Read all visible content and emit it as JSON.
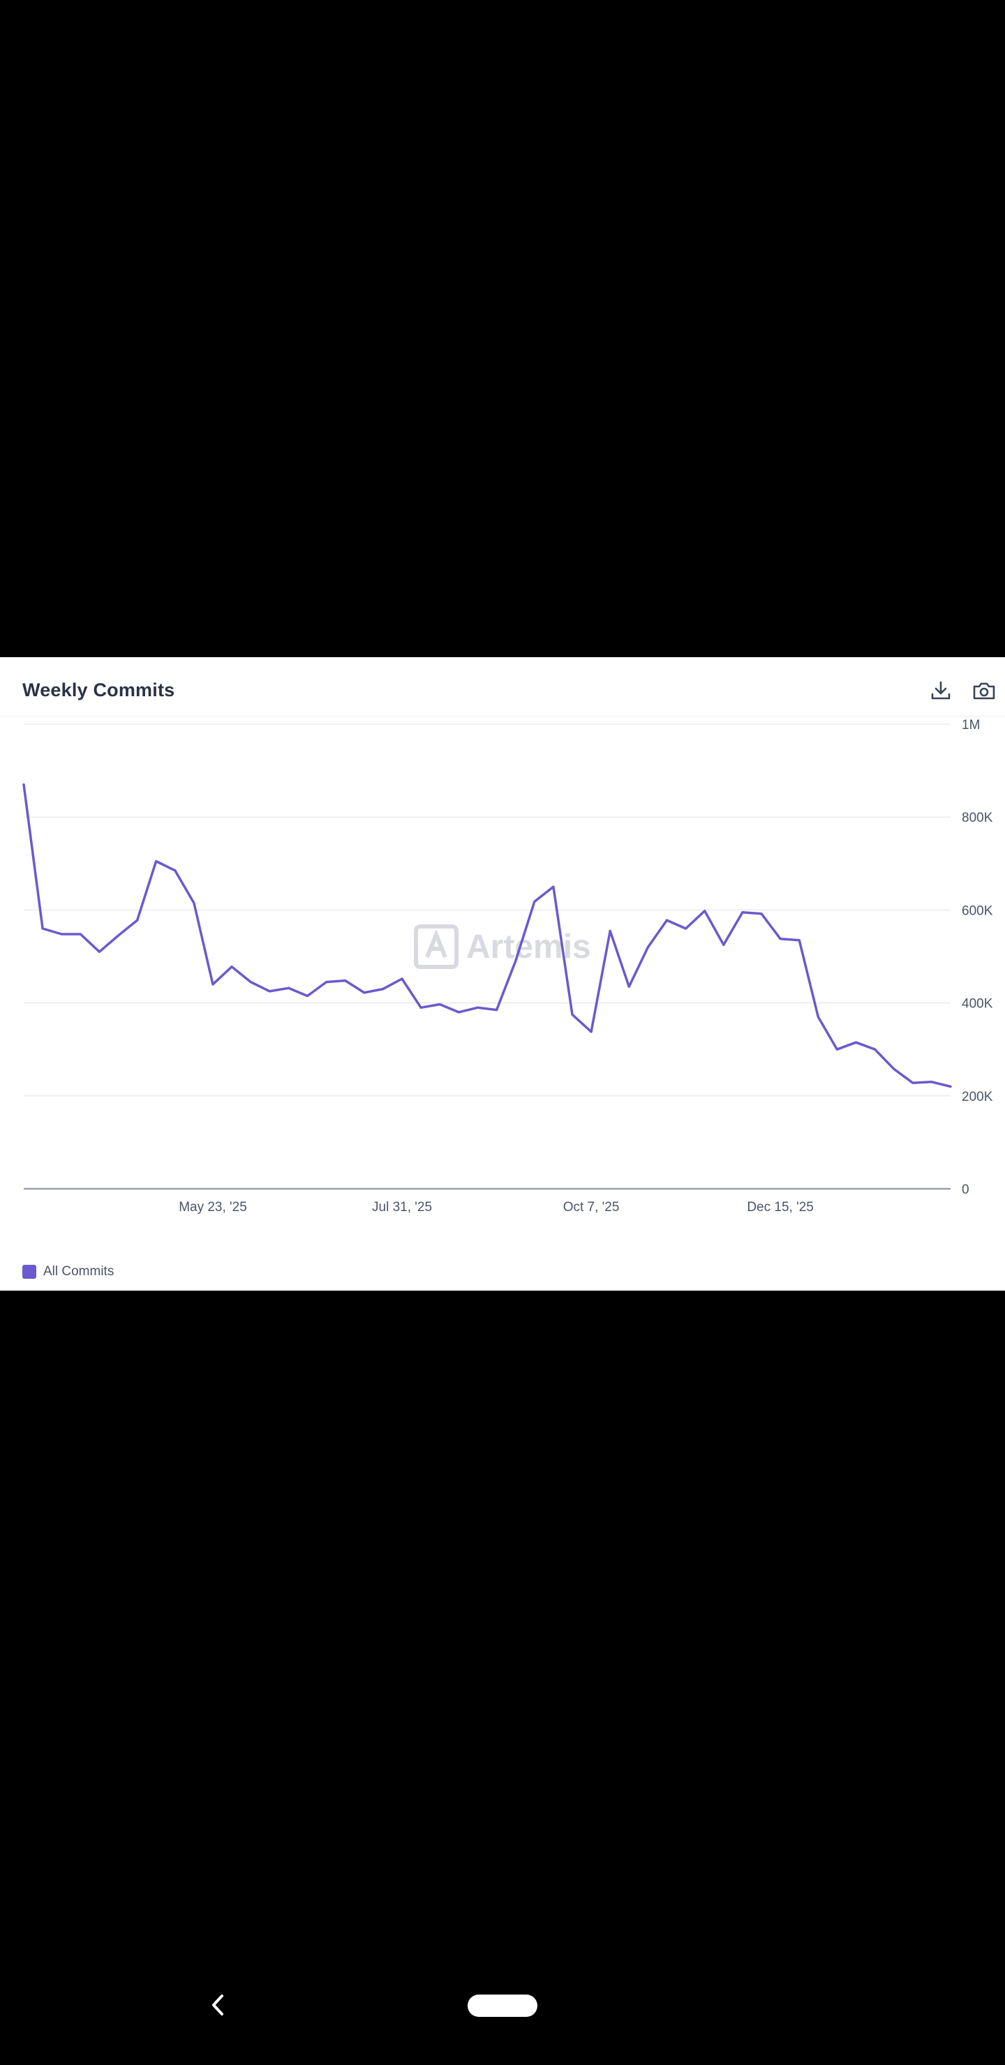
{
  "card": {
    "title": "Weekly Commits",
    "download_icon": "download-icon",
    "camera_icon": "camera-icon"
  },
  "watermark": {
    "text": "Artemis"
  },
  "colors": {
    "line": "#6a5acd",
    "grid": "#e8eaee",
    "axis": "#9aa0aa",
    "tick_text": "#4a5468",
    "watermark": "#d9dadf"
  },
  "chart_data": {
    "type": "line",
    "title": "Weekly Commits",
    "xlabel": "",
    "ylabel": "",
    "y_axis_position": "right",
    "ylim": [
      0,
      1000000
    ],
    "y_ticks": [
      {
        "value": 0,
        "label": "0"
      },
      {
        "value": 200000,
        "label": "200K"
      },
      {
        "value": 400000,
        "label": "400K"
      },
      {
        "value": 600000,
        "label": "600K"
      },
      {
        "value": 800000,
        "label": "800K"
      },
      {
        "value": 1000000,
        "label": "1M"
      }
    ],
    "x_ticks": [
      {
        "index": 10,
        "label": "May 23, '25"
      },
      {
        "index": 20,
        "label": "Jul 31, '25"
      },
      {
        "index": 30,
        "label": "Oct 7, '25"
      },
      {
        "index": 40,
        "label": "Dec 15, '25"
      }
    ],
    "grid": true,
    "legend_placement": "bottom-left",
    "series": [
      {
        "name": "All Commits",
        "color": "#6a5acd",
        "values": [
          870000,
          560000,
          548000,
          548000,
          510000,
          545000,
          578000,
          705000,
          685000,
          615000,
          440000,
          478000,
          445000,
          425000,
          432000,
          415000,
          445000,
          448000,
          422000,
          430000,
          452000,
          390000,
          397000,
          380000,
          390000,
          385000,
          490000,
          618000,
          650000,
          375000,
          338000,
          555000,
          435000,
          520000,
          578000,
          560000,
          598000,
          525000,
          595000,
          592000,
          538000,
          535000,
          370000,
          300000,
          315000,
          300000,
          258000,
          228000,
          230000,
          220000
        ]
      }
    ]
  },
  "nav": {
    "back_icon": "back-chevron-icon",
    "home_icon": "home-pill-icon"
  }
}
